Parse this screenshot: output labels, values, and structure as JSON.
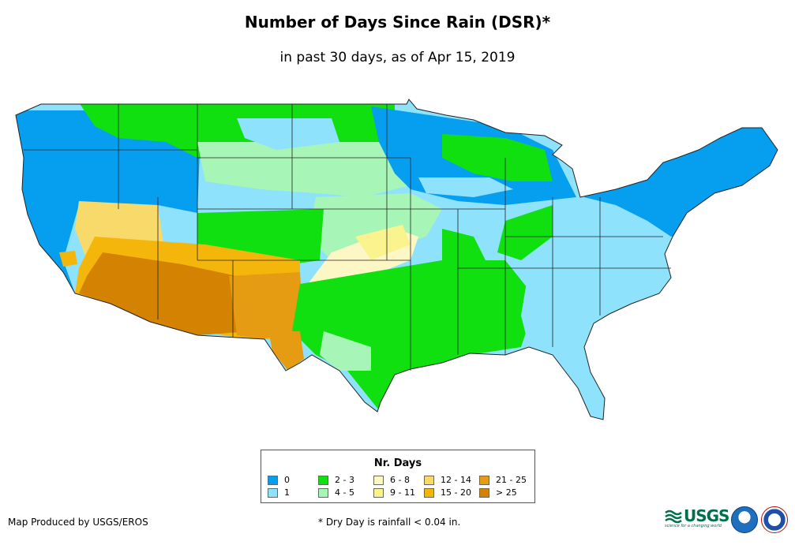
{
  "title": "Number of Days Since Rain (DSR)*",
  "subtitle": "in past 30 days, as of Apr 15, 2019",
  "legend": {
    "title": "Nr. Days",
    "items": [
      {
        "label": "0",
        "color": "#069ff0"
      },
      {
        "label": "1",
        "color": "#8ee2fb"
      },
      {
        "label": "2 - 3",
        "color": "#10e010"
      },
      {
        "label": "4 - 5",
        "color": "#a8f5b8"
      },
      {
        "label": "6 - 8",
        "color": "#fdf7c6"
      },
      {
        "label": "9 - 11",
        "color": "#fbf38e"
      },
      {
        "label": "12 - 14",
        "color": "#f8da6a"
      },
      {
        "label": "15 - 20",
        "color": "#f5b60c"
      },
      {
        "label": "21 - 25",
        "color": "#e59b12"
      },
      {
        "label": "> 25",
        "color": "#d38202"
      }
    ]
  },
  "footer": {
    "credit": "Map Produced by USGS/EROS",
    "note": "* Dry Day is rainfall < 0.04 in."
  },
  "logos": {
    "usgs": "USGS",
    "usgs_tagline": "science for a changing world"
  }
}
